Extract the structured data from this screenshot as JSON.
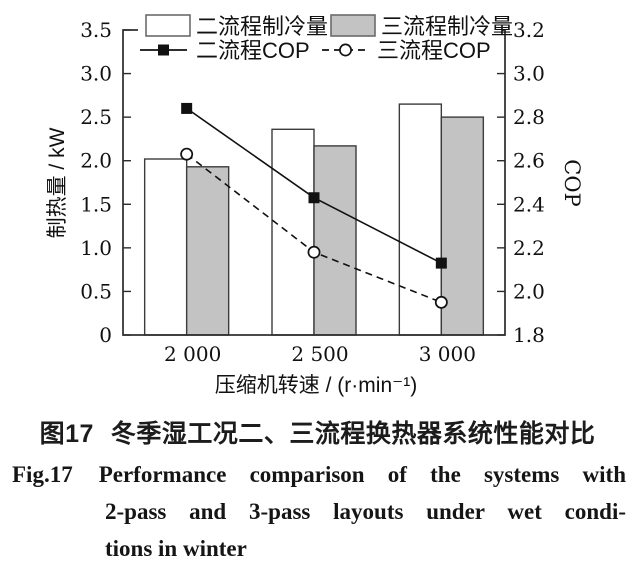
{
  "figure": {
    "caption_cn": {
      "label": "图17",
      "text": "冬季湿工况二、三流程换热器系统性能对比"
    },
    "caption_en": {
      "label": "Fig.17",
      "lines": [
        "Performance comparison of the systems with",
        "2-pass and 3-pass layouts under wet condi-",
        "tions in winter"
      ]
    }
  },
  "chart_data": {
    "type": "bar",
    "title": "",
    "categories": [
      "2 000",
      "2 500",
      "3 000"
    ],
    "xlabel": "压缩机转速 / (r·min⁻¹)",
    "grid": false,
    "legend_position": "top-inside",
    "axes": {
      "left": {
        "label": "制热量 / kW",
        "min": 0,
        "max": 3.5,
        "tick_values": [
          0,
          0.5,
          1.0,
          1.5,
          2.0,
          2.5,
          3.0,
          3.5
        ],
        "tick_labels": [
          "0",
          "0.5",
          "1.0",
          "1.5",
          "2.0",
          "2.5",
          "3.0",
          "3.5"
        ]
      },
      "right": {
        "label": "COP",
        "min": 1.8,
        "max": 3.2,
        "tick_values": [
          1.8,
          2.0,
          2.2,
          2.4,
          2.6,
          2.8,
          3.0,
          3.2
        ],
        "tick_labels": [
          "1.8",
          "2.0",
          "2.2",
          "2.4",
          "2.6",
          "2.8",
          "3.0",
          "3.2"
        ]
      }
    },
    "series": [
      {
        "name": "二流程制冷量",
        "type": "bar",
        "axis": "left",
        "fill": "#ffffff",
        "values": [
          2.02,
          2.36,
          2.65
        ]
      },
      {
        "name": "三流程制冷量",
        "type": "bar",
        "axis": "left",
        "fill": "#c3c3c3",
        "values": [
          1.93,
          2.17,
          2.5
        ]
      },
      {
        "name": "二流程COP",
        "type": "line",
        "axis": "right",
        "line_style": "solid",
        "marker": "filled-square",
        "color": "#111111",
        "values": [
          2.84,
          2.43,
          2.13
        ]
      },
      {
        "name": "三流程COP",
        "type": "line",
        "axis": "right",
        "line_style": "dashed",
        "marker": "open-circle",
        "color": "#111111",
        "values": [
          2.63,
          2.18,
          1.95
        ]
      }
    ],
    "colors": {
      "axis": "#2b2b2b",
      "bar_stroke": "#3c3c3c",
      "gray_fill": "#c3c3c3",
      "text": "#111111"
    }
  }
}
